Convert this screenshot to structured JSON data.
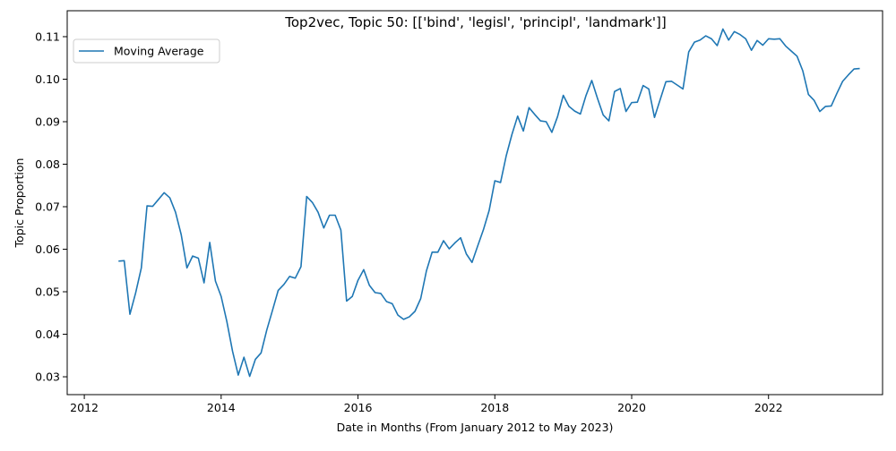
{
  "chart_data": {
    "type": "line",
    "title": "Top2vec, Topic 50: [['bind', 'legisl', 'principl', 'landmark']]",
    "xlabel": "Date in Months (From January 2012 to May 2023)",
    "ylabel": "Topic Proportion",
    "xlim": [
      "2011-10",
      "2023-09"
    ],
    "ylim": [
      0.0258,
      0.1161
    ],
    "x_ticks": [
      {
        "label": "2012",
        "value": "2012-01"
      },
      {
        "label": "2014",
        "value": "2014-01"
      },
      {
        "label": "2016",
        "value": "2016-01"
      },
      {
        "label": "2018",
        "value": "2018-01"
      },
      {
        "label": "2020",
        "value": "2020-01"
      },
      {
        "label": "2022",
        "value": "2022-01"
      }
    ],
    "y_ticks": [
      "0.03",
      "0.04",
      "0.05",
      "0.06",
      "0.07",
      "0.08",
      "0.09",
      "0.10",
      "0.11"
    ],
    "legend": {
      "position": "top-left"
    },
    "grid": false,
    "series": [
      {
        "name": "Moving Average",
        "color": "#1f77b4",
        "points": [
          [
            "2012-07",
            0.0572
          ],
          [
            "2012-08",
            0.0573
          ],
          [
            "2012-09",
            0.0447
          ],
          [
            "2012-10",
            0.0497
          ],
          [
            "2012-11",
            0.0556
          ],
          [
            "2012-12",
            0.0702
          ],
          [
            "2013-01",
            0.0701
          ],
          [
            "2013-02",
            0.0717
          ],
          [
            "2013-03",
            0.0733
          ],
          [
            "2013-04",
            0.0721
          ],
          [
            "2013-05",
            0.0687
          ],
          [
            "2013-06",
            0.0634
          ],
          [
            "2013-07",
            0.0556
          ],
          [
            "2013-08",
            0.0584
          ],
          [
            "2013-09",
            0.0579
          ],
          [
            "2013-10",
            0.0521
          ],
          [
            "2013-11",
            0.0616
          ],
          [
            "2013-12",
            0.0525
          ],
          [
            "2014-01",
            0.0489
          ],
          [
            "2014-02",
            0.043
          ],
          [
            "2014-03",
            0.036
          ],
          [
            "2014-04",
            0.0304
          ],
          [
            "2014-05",
            0.0346
          ],
          [
            "2014-06",
            0.0301
          ],
          [
            "2014-07",
            0.0341
          ],
          [
            "2014-08",
            0.0356
          ],
          [
            "2014-09",
            0.041
          ],
          [
            "2014-10",
            0.0456
          ],
          [
            "2014-11",
            0.0503
          ],
          [
            "2014-12",
            0.0517
          ],
          [
            "2015-01",
            0.0536
          ],
          [
            "2015-02",
            0.0532
          ],
          [
            "2015-03",
            0.0559
          ],
          [
            "2015-04",
            0.0724
          ],
          [
            "2015-05",
            0.071
          ],
          [
            "2015-06",
            0.0687
          ],
          [
            "2015-07",
            0.065
          ],
          [
            "2015-08",
            0.068
          ],
          [
            "2015-09",
            0.068
          ],
          [
            "2015-10",
            0.0645
          ],
          [
            "2015-11",
            0.0478
          ],
          [
            "2015-12",
            0.0489
          ],
          [
            "2016-01",
            0.0527
          ],
          [
            "2016-02",
            0.0552
          ],
          [
            "2016-03",
            0.0515
          ],
          [
            "2016-04",
            0.0498
          ],
          [
            "2016-05",
            0.0496
          ],
          [
            "2016-06",
            0.0477
          ],
          [
            "2016-07",
            0.0472
          ],
          [
            "2016-08",
            0.0445
          ],
          [
            "2016-09",
            0.0435
          ],
          [
            "2016-10",
            0.0441
          ],
          [
            "2016-11",
            0.0454
          ],
          [
            "2016-12",
            0.0484
          ],
          [
            "2017-01",
            0.0549
          ],
          [
            "2017-02",
            0.0593
          ],
          [
            "2017-03",
            0.0593
          ],
          [
            "2017-04",
            0.062
          ],
          [
            "2017-05",
            0.0601
          ],
          [
            "2017-06",
            0.0615
          ],
          [
            "2017-07",
            0.0627
          ],
          [
            "2017-08",
            0.0589
          ],
          [
            "2017-09",
            0.0569
          ],
          [
            "2017-10",
            0.0608
          ],
          [
            "2017-11",
            0.0646
          ],
          [
            "2017-12",
            0.0691
          ],
          [
            "2018-01",
            0.0761
          ],
          [
            "2018-02",
            0.0757
          ],
          [
            "2018-03",
            0.082
          ],
          [
            "2018-04",
            0.087
          ],
          [
            "2018-05",
            0.0913
          ],
          [
            "2018-06",
            0.0878
          ],
          [
            "2018-07",
            0.0933
          ],
          [
            "2018-08",
            0.0917
          ],
          [
            "2018-09",
            0.0902
          ],
          [
            "2018-10",
            0.09
          ],
          [
            "2018-11",
            0.0875
          ],
          [
            "2018-12",
            0.0912
          ],
          [
            "2019-01",
            0.0962
          ],
          [
            "2019-02",
            0.0936
          ],
          [
            "2019-03",
            0.0925
          ],
          [
            "2019-04",
            0.0918
          ],
          [
            "2019-05",
            0.0962
          ],
          [
            "2019-06",
            0.0997
          ],
          [
            "2019-07",
            0.0955
          ],
          [
            "2019-08",
            0.0916
          ],
          [
            "2019-09",
            0.0902
          ],
          [
            "2019-10",
            0.0971
          ],
          [
            "2019-11",
            0.0978
          ],
          [
            "2019-12",
            0.0924
          ],
          [
            "2020-01",
            0.0945
          ],
          [
            "2020-02",
            0.0946
          ],
          [
            "2020-03",
            0.0985
          ],
          [
            "2020-04",
            0.0977
          ],
          [
            "2020-05",
            0.091
          ],
          [
            "2020-06",
            0.0952
          ],
          [
            "2020-07",
            0.0994
          ],
          [
            "2020-08",
            0.0995
          ],
          [
            "2020-09",
            0.0986
          ],
          [
            "2020-10",
            0.0977
          ],
          [
            "2020-11",
            0.1064
          ],
          [
            "2020-12",
            0.1087
          ],
          [
            "2021-01",
            0.1092
          ],
          [
            "2021-02",
            0.1102
          ],
          [
            "2021-03",
            0.1095
          ],
          [
            "2021-04",
            0.1079
          ],
          [
            "2021-05",
            0.1118
          ],
          [
            "2021-06",
            0.1092
          ],
          [
            "2021-07",
            0.1112
          ],
          [
            "2021-08",
            0.1105
          ],
          [
            "2021-09",
            0.1095
          ],
          [
            "2021-10",
            0.1068
          ],
          [
            "2021-11",
            0.1091
          ],
          [
            "2021-12",
            0.108
          ],
          [
            "2022-01",
            0.1095
          ],
          [
            "2022-02",
            0.1094
          ],
          [
            "2022-03",
            0.1095
          ],
          [
            "2022-04",
            0.1078
          ],
          [
            "2022-05",
            0.1066
          ],
          [
            "2022-06",
            0.1054
          ],
          [
            "2022-07",
            0.102
          ],
          [
            "2022-08",
            0.0964
          ],
          [
            "2022-09",
            0.095
          ],
          [
            "2022-10",
            0.0924
          ],
          [
            "2022-11",
            0.0936
          ],
          [
            "2022-12",
            0.0937
          ],
          [
            "2023-01",
            0.0967
          ],
          [
            "2023-02",
            0.0995
          ],
          [
            "2023-03",
            0.101
          ],
          [
            "2023-04",
            0.1024
          ],
          [
            "2023-05",
            0.1025
          ]
        ]
      }
    ]
  }
}
